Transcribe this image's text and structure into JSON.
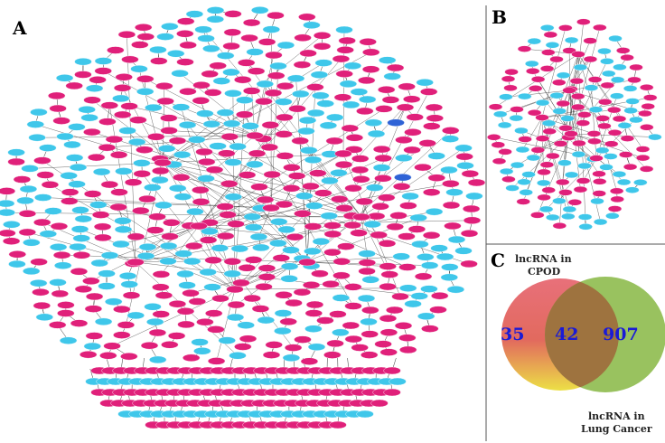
{
  "panels": {
    "a": {
      "letter": "A"
    },
    "b": {
      "letter": "B"
    },
    "c": {
      "letter": "C"
    }
  },
  "colors": {
    "node_magenta": "#e0207a",
    "node_cyan": "#3fc7ea",
    "node_blue": "#2f63d6",
    "edge": "#333333",
    "venn_left_top": "#e86a72",
    "venn_left_bottom": "#ece246",
    "venn_right": "#96c05a",
    "venn_overlap": "#a7673f",
    "venn_count": "#1a1ad6"
  },
  "venn": {
    "set_left": {
      "label_line1": "lncRNA in",
      "label_line2": "CPOD",
      "count": "35"
    },
    "set_right": {
      "label_line1": "lncRNA in",
      "label_line2": "Lung Cancer",
      "count": "907"
    },
    "overlap": {
      "count": "42"
    }
  }
}
